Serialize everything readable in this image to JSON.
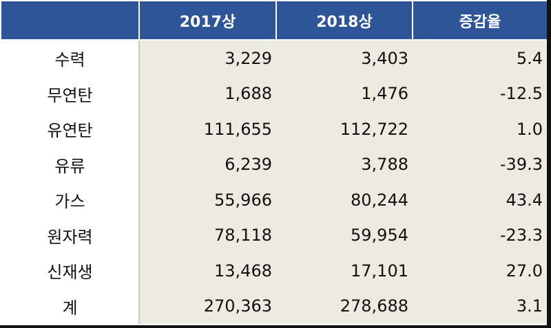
{
  "table": {
    "headers": [
      "",
      "2017상",
      "2018상",
      "증감율"
    ],
    "rows": [
      {
        "label": "수력",
        "v2017": "3,229",
        "v2018": "3,403",
        "change": "5.4"
      },
      {
        "label": "무연탄",
        "v2017": "1,688",
        "v2018": "1,476",
        "change": "-12.5"
      },
      {
        "label": "유연탄",
        "v2017": "111,655",
        "v2018": "112,722",
        "change": "1.0"
      },
      {
        "label": "유류",
        "v2017": "6,239",
        "v2018": "3,788",
        "change": "-39.3"
      },
      {
        "label": "가스",
        "v2017": "55,966",
        "v2018": "80,244",
        "change": "43.4"
      },
      {
        "label": "원자력",
        "v2017": "78,118",
        "v2018": "59,954",
        "change": "-23.3"
      },
      {
        "label": "신재생",
        "v2017": "13,468",
        "v2018": "17,101",
        "change": "27.0"
      },
      {
        "label": "계",
        "v2017": "270,363",
        "v2018": "278,688",
        "change": "3.1"
      }
    ]
  },
  "colors": {
    "header_bg": "#2e5597",
    "header_text": "#ffffff",
    "data_bg": "#edeae1"
  }
}
